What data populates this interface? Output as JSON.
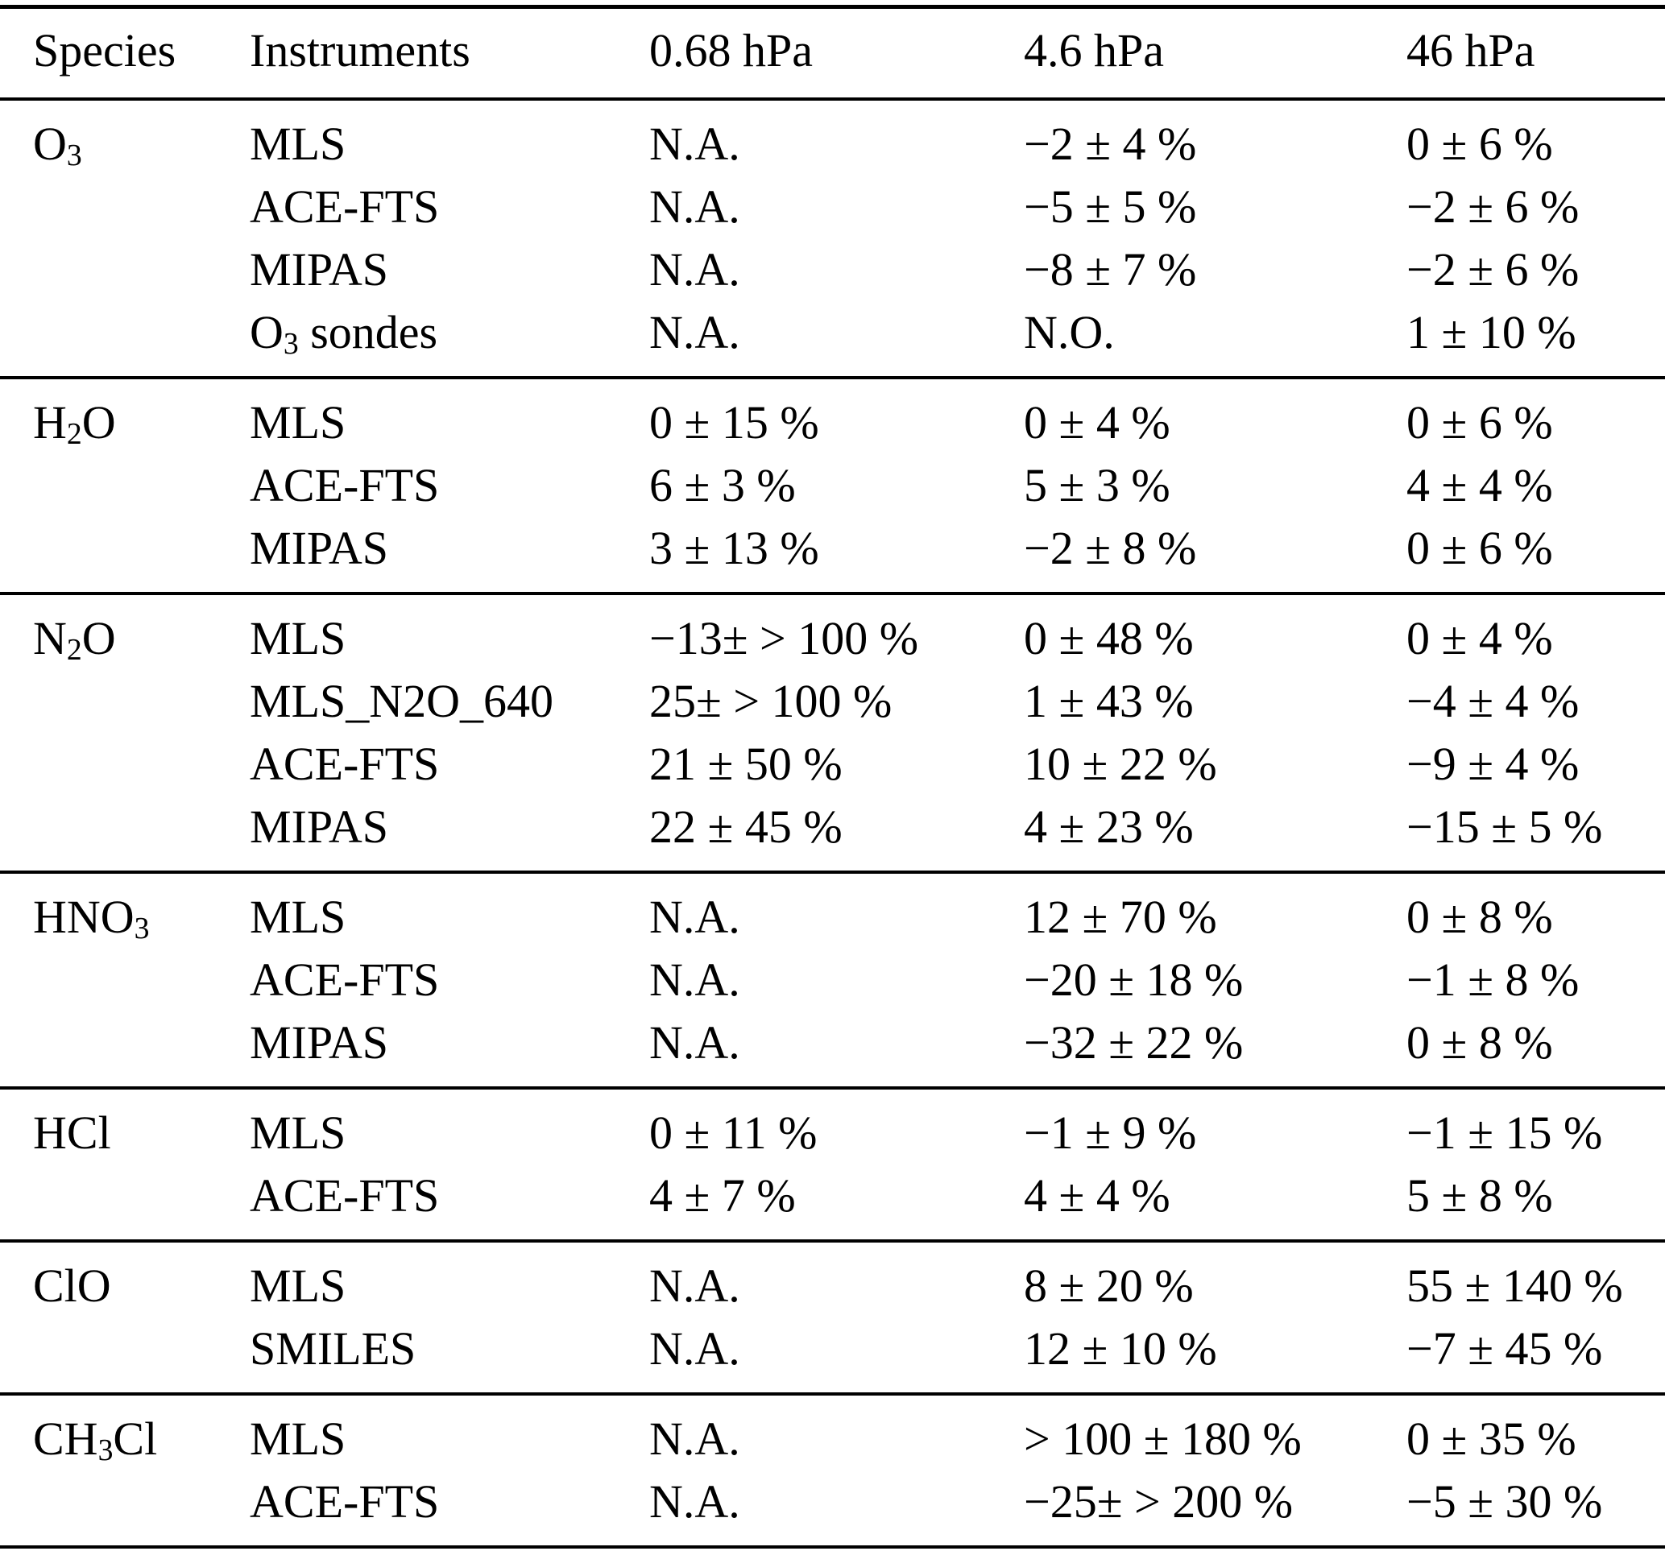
{
  "table": {
    "columns": [
      "Species",
      "Instruments",
      "0.68 hPa",
      "4.6 hPa",
      "46 hPa"
    ],
    "sections": [
      {
        "species": {
          "pre": "O",
          "sub": "3",
          "post": ""
        },
        "rows": [
          {
            "instrument": {
              "pre": "MLS",
              "sub": "",
              "post": ""
            },
            "values": [
              "N.A.",
              "−2 ± 4 %",
              "0 ± 6 %"
            ]
          },
          {
            "instrument": {
              "pre": "ACE-FTS",
              "sub": "",
              "post": ""
            },
            "values": [
              "N.A.",
              "−5 ± 5 %",
              "−2 ± 6 %"
            ]
          },
          {
            "instrument": {
              "pre": "MIPAS",
              "sub": "",
              "post": ""
            },
            "values": [
              "N.A.",
              "−8 ± 7 %",
              "−2 ± 6 %"
            ]
          },
          {
            "instrument": {
              "pre": "O",
              "sub": "3",
              "post": " sondes"
            },
            "values": [
              "N.A.",
              "N.O.",
              "1 ± 10 %"
            ]
          }
        ]
      },
      {
        "species": {
          "pre": "H",
          "sub": "2",
          "post": "O"
        },
        "rows": [
          {
            "instrument": {
              "pre": "MLS",
              "sub": "",
              "post": ""
            },
            "values": [
              "0 ± 15 %",
              "0 ± 4 %",
              "0 ± 6 %"
            ]
          },
          {
            "instrument": {
              "pre": "ACE-FTS",
              "sub": "",
              "post": ""
            },
            "values": [
              "6 ± 3 %",
              "5 ± 3 %",
              "4 ± 4 %"
            ]
          },
          {
            "instrument": {
              "pre": "MIPAS",
              "sub": "",
              "post": ""
            },
            "values": [
              "3 ± 13 %",
              "−2 ± 8 %",
              "0 ± 6 %"
            ]
          }
        ]
      },
      {
        "species": {
          "pre": "N",
          "sub": "2",
          "post": "O"
        },
        "rows": [
          {
            "instrument": {
              "pre": "MLS",
              "sub": "",
              "post": ""
            },
            "values": [
              "−13± > 100 %",
              "0 ± 48 %",
              "0 ± 4 %"
            ]
          },
          {
            "instrument": {
              "pre": "MLS_N2O_640",
              "sub": "",
              "post": ""
            },
            "values": [
              "25± > 100 %",
              "1 ± 43 %",
              "−4 ± 4 %"
            ]
          },
          {
            "instrument": {
              "pre": "ACE-FTS",
              "sub": "",
              "post": ""
            },
            "values": [
              "21 ± 50 %",
              "10 ± 22 %",
              "−9 ± 4 %"
            ]
          },
          {
            "instrument": {
              "pre": "MIPAS",
              "sub": "",
              "post": ""
            },
            "values": [
              "22 ± 45 %",
              "4 ± 23 %",
              "−15 ± 5 %"
            ]
          }
        ]
      },
      {
        "species": {
          "pre": "HNO",
          "sub": "3",
          "post": ""
        },
        "rows": [
          {
            "instrument": {
              "pre": "MLS",
              "sub": "",
              "post": ""
            },
            "values": [
              "N.A.",
              "12 ± 70 %",
              "0 ± 8 %"
            ]
          },
          {
            "instrument": {
              "pre": "ACE-FTS",
              "sub": "",
              "post": ""
            },
            "values": [
              "N.A.",
              "−20 ± 18 %",
              "−1 ± 8 %"
            ]
          },
          {
            "instrument": {
              "pre": "MIPAS",
              "sub": "",
              "post": ""
            },
            "values": [
              "N.A.",
              "−32 ± 22 %",
              "0 ± 8 %"
            ]
          }
        ]
      },
      {
        "species": {
          "pre": "HCl",
          "sub": "",
          "post": ""
        },
        "rows": [
          {
            "instrument": {
              "pre": "MLS",
              "sub": "",
              "post": ""
            },
            "values": [
              "0 ± 11 %",
              "−1 ± 9 %",
              "−1 ± 15 %"
            ]
          },
          {
            "instrument": {
              "pre": "ACE-FTS",
              "sub": "",
              "post": ""
            },
            "values": [
              "4 ± 7 %",
              "4 ± 4 %",
              "5 ± 8 %"
            ]
          }
        ]
      },
      {
        "species": {
          "pre": "ClO",
          "sub": "",
          "post": ""
        },
        "rows": [
          {
            "instrument": {
              "pre": "MLS",
              "sub": "",
              "post": ""
            },
            "values": [
              "N.A.",
              "8 ± 20 %",
              "55 ± 140 %"
            ]
          },
          {
            "instrument": {
              "pre": "SMILES",
              "sub": "",
              "post": ""
            },
            "values": [
              "N.A.",
              "12 ± 10 %",
              "−7 ± 45 %"
            ]
          }
        ]
      },
      {
        "species": {
          "pre": "CH",
          "sub": "3",
          "post": "Cl"
        },
        "rows": [
          {
            "instrument": {
              "pre": "MLS",
              "sub": "",
              "post": ""
            },
            "values": [
              "N.A.",
              "> 100 ± 180 %",
              "0 ± 35 %"
            ]
          },
          {
            "instrument": {
              "pre": "ACE-FTS",
              "sub": "",
              "post": ""
            },
            "values": [
              "N.A.",
              "−25± > 200 %",
              "−5 ± 30 %"
            ]
          }
        ]
      }
    ]
  }
}
